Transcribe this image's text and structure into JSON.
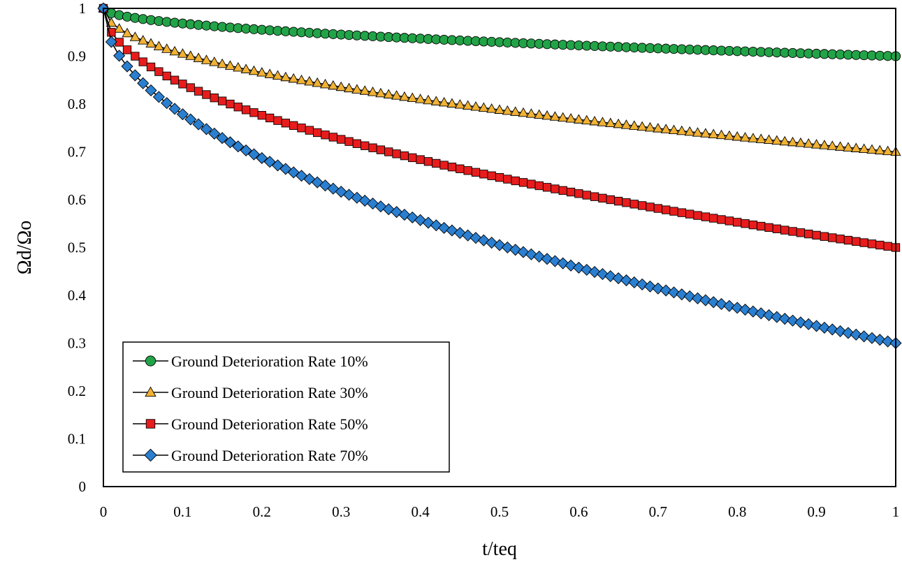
{
  "chart_data": {
    "type": "line",
    "title": "",
    "xlabel": "t/teq",
    "ylabel": "Ωd/Ωo",
    "xlim": [
      0,
      1
    ],
    "ylim": [
      0,
      1
    ],
    "x_ticks": [
      "0",
      "0.1",
      "0.2",
      "0.3",
      "0.4",
      "0.5",
      "0.6",
      "0.7",
      "0.8",
      "0.9",
      "1"
    ],
    "y_ticks": [
      "0",
      "0.1",
      "0.2",
      "0.3",
      "0.4",
      "0.5",
      "0.6",
      "0.7",
      "0.8",
      "0.9",
      "1"
    ],
    "grid": false,
    "legend_position": "bottom-left",
    "samples": 101,
    "curve_exponent": 0.5,
    "series": [
      {
        "name": "Ground Deterioration Rate 10%",
        "rate": 0.1,
        "start": 1.0,
        "end": 0.9,
        "marker": "circle",
        "color": "#22a348"
      },
      {
        "name": "Ground Deterioration Rate 30%",
        "rate": 0.3,
        "start": 1.0,
        "end": 0.7,
        "marker": "triangle",
        "color": "#f2b233"
      },
      {
        "name": "Ground Deterioration Rate 50%",
        "rate": 0.5,
        "start": 1.0,
        "end": 0.5,
        "marker": "square",
        "color": "#e81c1c"
      },
      {
        "name": "Ground Deterioration Rate 70%",
        "rate": 0.7,
        "start": 1.0,
        "end": 0.3,
        "marker": "diamond",
        "color": "#2a7fd0"
      }
    ]
  }
}
